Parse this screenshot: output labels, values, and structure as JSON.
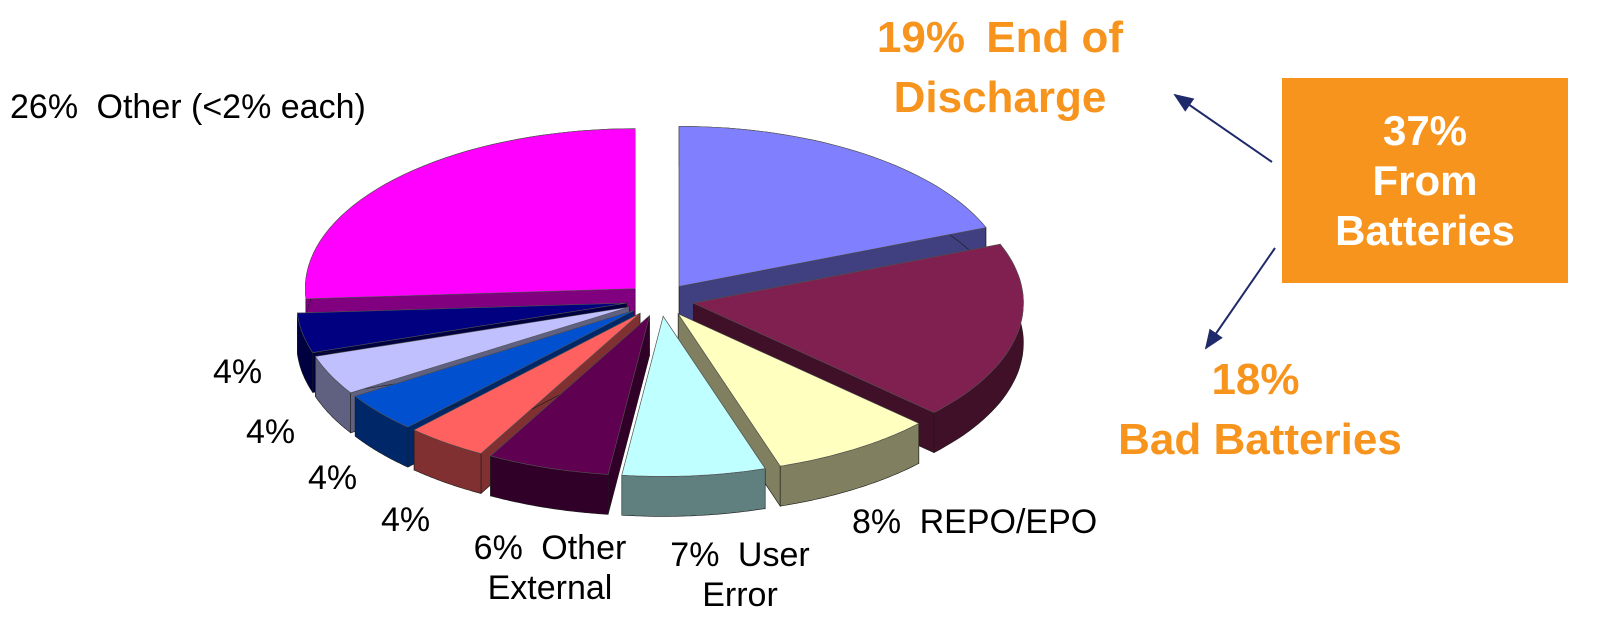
{
  "chart_data": {
    "type": "pie",
    "categories": [
      "End of Discharge",
      "Bad Batteries",
      "REPO/EPO",
      "User Error",
      "Other External",
      null,
      null,
      null,
      null,
      "Other (<2% each)"
    ],
    "values": [
      19,
      18,
      8,
      7,
      6,
      4,
      4,
      4,
      4,
      26
    ],
    "value_labels": [
      "19%",
      "18%",
      "8%",
      "7%",
      "6%",
      "4%",
      "4%",
      "4%",
      "4%",
      "26%"
    ],
    "colors": [
      "#8080ff",
      "#802050",
      "#ffffc0",
      "#c0ffff",
      "#600050",
      "#ff6060",
      "#0050d0",
      "#c0c0ff",
      "#000080",
      "#ff00ff"
    ],
    "annotations": [
      {
        "lines": [
          "37%",
          "From",
          "Batteries"
        ]
      }
    ]
  }
}
